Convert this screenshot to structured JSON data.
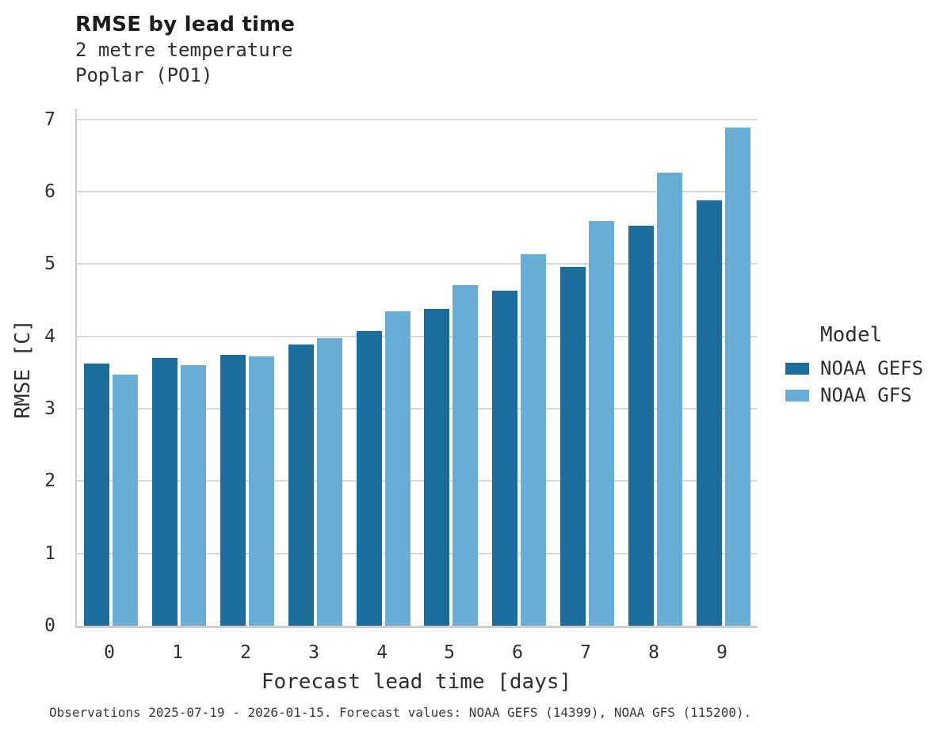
{
  "header": {
    "title": "RMSE by lead time",
    "subtitle_line1": "2 metre temperature",
    "subtitle_line2": "Poplar (PO1)"
  },
  "chart_data": {
    "type": "bar",
    "title": "RMSE by lead time",
    "subtitle": [
      "2 metre temperature",
      "Poplar (PO1)"
    ],
    "categories": [
      "0",
      "1",
      "2",
      "3",
      "4",
      "5",
      "6",
      "7",
      "8",
      "9"
    ],
    "series": [
      {
        "name": "NOAA GEFS",
        "color": "#1b6d9e",
        "values": [
          3.62,
          3.7,
          3.74,
          3.89,
          4.07,
          4.38,
          4.63,
          4.96,
          5.53,
          5.88
        ]
      },
      {
        "name": "NOAA GFS",
        "color": "#69aed6",
        "values": [
          3.47,
          3.6,
          3.72,
          3.97,
          4.35,
          4.71,
          5.14,
          5.59,
          6.26,
          6.89
        ]
      }
    ],
    "xlabel": "Forecast lead time [days]",
    "ylabel": "RMSE [C]",
    "ylim": [
      0,
      7.15
    ],
    "yticks": [
      0,
      1,
      2,
      3,
      4,
      5,
      6,
      7
    ],
    "grid": true,
    "legend_title": "Model",
    "legend_position": "right",
    "colors": {
      "grid": "#d8d8d8",
      "spine": "#cfcfcf",
      "text": "#2f2f2f"
    }
  },
  "footer": {
    "note": "Observations 2025-07-19 - 2026-01-15. Forecast values: NOAA GEFS (14399), NOAA GFS (115200)."
  }
}
